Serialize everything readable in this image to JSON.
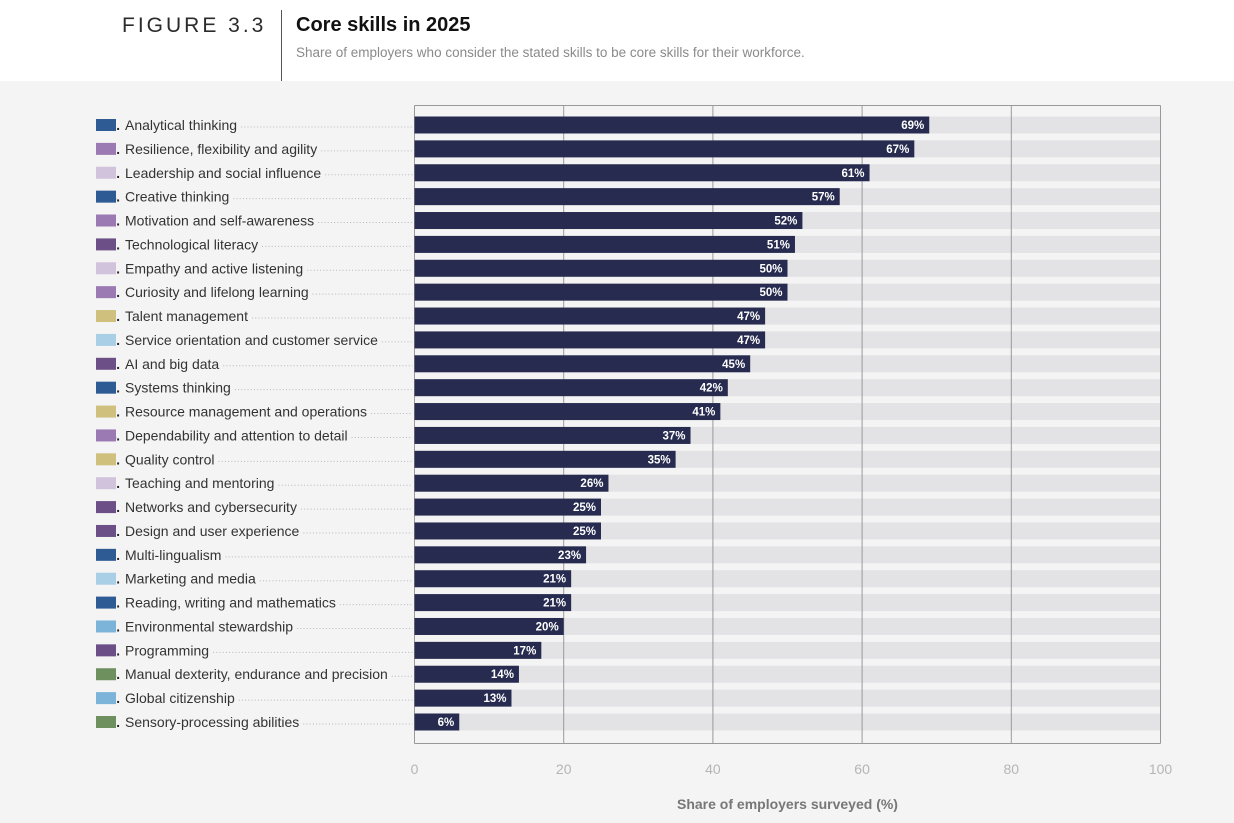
{
  "header": {
    "figure_label": "FIGURE 3.3",
    "title": "Core skills in 2025",
    "subtitle": "Share of employers who consider the stated skills to be core skills for their workforce."
  },
  "colors": {
    "bar": "#262b4f",
    "track": "#e3e3e6",
    "panel_bg": "#f4f4f4",
    "grid": "#999999"
  },
  "chart_data": {
    "type": "bar",
    "orientation": "horizontal",
    "title": "Core skills in 2025",
    "xlabel": "Share of employers surveyed (%)",
    "ylabel": "",
    "xlim": [
      0,
      100
    ],
    "xticks": [
      0,
      20,
      40,
      60,
      80,
      100
    ],
    "grid": true,
    "categories": [
      {
        "rank": "1.",
        "label": "Analytical thinking",
        "value": 69,
        "display": "69%",
        "color": "#2e5b94"
      },
      {
        "rank": "2.",
        "label": "Resilience, flexibility and agility",
        "value": 67,
        "display": "67%",
        "color": "#9b79b3"
      },
      {
        "rank": "3.",
        "label": "Leadership and social influence",
        "value": 61,
        "display": "61%",
        "color": "#d2c3dc"
      },
      {
        "rank": "4.",
        "label": "Creative thinking",
        "value": 57,
        "display": "57%",
        "color": "#2e5b94"
      },
      {
        "rank": "5.",
        "label": "Motivation and self-awareness",
        "value": 52,
        "display": "52%",
        "color": "#9b79b3"
      },
      {
        "rank": "6.",
        "label": "Technological literacy",
        "value": 51,
        "display": "51%",
        "color": "#6c4f87"
      },
      {
        "rank": "7.",
        "label": "Empathy and active listening",
        "value": 50,
        "display": "50%",
        "color": "#d2c3dc"
      },
      {
        "rank": "8.",
        "label": "Curiosity and lifelong learning",
        "value": 50,
        "display": "50%",
        "color": "#9b79b3"
      },
      {
        "rank": "9.",
        "label": "Talent management",
        "value": 47,
        "display": "47%",
        "color": "#cfc07e"
      },
      {
        "rank": "10.",
        "label": "Service orientation and customer service",
        "value": 47,
        "display": "47%",
        "color": "#a9cfe6"
      },
      {
        "rank": "11.",
        "label": "AI and big data",
        "value": 45,
        "display": "45%",
        "color": "#6c4f87"
      },
      {
        "rank": "12.",
        "label": "Systems thinking",
        "value": 42,
        "display": "42%",
        "color": "#2e5b94"
      },
      {
        "rank": "13.",
        "label": "Resource management and operations",
        "value": 41,
        "display": "41%",
        "color": "#cfc07e"
      },
      {
        "rank": "14.",
        "label": "Dependability and attention to detail",
        "value": 37,
        "display": "37%",
        "color": "#9b79b3"
      },
      {
        "rank": "15.",
        "label": "Quality control",
        "value": 35,
        "display": "35%",
        "color": "#cfc07e"
      },
      {
        "rank": "16.",
        "label": "Teaching and mentoring",
        "value": 26,
        "display": "26%",
        "color": "#d2c3dc"
      },
      {
        "rank": "17.",
        "label": "Networks and cybersecurity",
        "value": 25,
        "display": "25%",
        "color": "#6c4f87"
      },
      {
        "rank": "18.",
        "label": "Design and user experience",
        "value": 25,
        "display": "25%",
        "color": "#6c4f87"
      },
      {
        "rank": "19.",
        "label": "Multi-lingualism",
        "value": 23,
        "display": "23%",
        "color": "#2e5b94"
      },
      {
        "rank": "20.",
        "label": "Marketing and media",
        "value": 21,
        "display": "21%",
        "color": "#a9cfe6"
      },
      {
        "rank": "21.",
        "label": "Reading, writing and mathematics",
        "value": 21,
        "display": "21%",
        "color": "#2e5b94"
      },
      {
        "rank": "22.",
        "label": "Environmental stewardship",
        "value": 20,
        "display": "20%",
        "color": "#7bb4d8"
      },
      {
        "rank": "23.",
        "label": "Programming",
        "value": 17,
        "display": "17%",
        "color": "#6c4f87"
      },
      {
        "rank": "24.",
        "label": "Manual dexterity, endurance and precision",
        "value": 14,
        "display": "14%",
        "color": "#6e8f5e"
      },
      {
        "rank": "25.",
        "label": "Global citizenship",
        "value": 13,
        "display": "13%",
        "color": "#7bb4d8"
      },
      {
        "rank": "26.",
        "label": "Sensory-processing abilities",
        "value": 6,
        "display": "6%",
        "color": "#6e8f5e"
      }
    ]
  }
}
